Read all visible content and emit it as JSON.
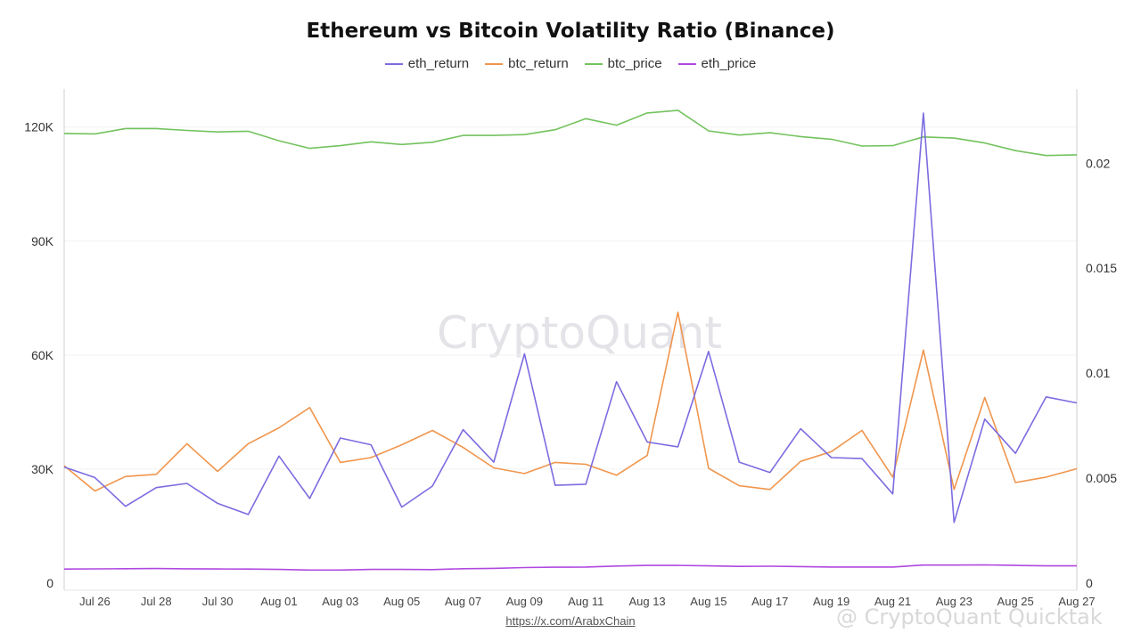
{
  "page": {
    "watermark_text": "CryptoQuant",
    "footer_link": "https://x.com/ArabxChain",
    "corner_mark": "@ CryptoQuant Quicktak"
  },
  "chart_data": {
    "type": "line",
    "title": "Ethereum vs Bitcoin Volatility Ratio (Binance)",
    "x": [
      "Jul 25",
      "Jul 26",
      "Jul 27",
      "Jul 28",
      "Jul 29",
      "Jul 30",
      "Jul 31",
      "Aug 01",
      "Aug 02",
      "Aug 03",
      "Aug 04",
      "Aug 05",
      "Aug 06",
      "Aug 07",
      "Aug 08",
      "Aug 09",
      "Aug 10",
      "Aug 11",
      "Aug 12",
      "Aug 13",
      "Aug 14",
      "Aug 15",
      "Aug 16",
      "Aug 17",
      "Aug 18",
      "Aug 19",
      "Aug 20",
      "Aug 21",
      "Aug 22",
      "Aug 23",
      "Aug 24",
      "Aug 25",
      "Aug 26",
      "Aug 27"
    ],
    "x_tick_labels": [
      "Jul 26",
      "Jul 28",
      "Jul 30",
      "Aug 01",
      "Aug 03",
      "Aug 05",
      "Aug 07",
      "Aug 09",
      "Aug 11",
      "Aug 13",
      "Aug 15",
      "Aug 17",
      "Aug 19",
      "Aug 21",
      "Aug 23",
      "Aug 25",
      "Aug 27"
    ],
    "y_left": {
      "ticks": [
        0,
        30000,
        60000,
        90000,
        120000
      ],
      "tick_labels": [
        "0",
        "30K",
        "60K",
        "90K",
        "120K"
      ],
      "range": [
        0,
        130000
      ]
    },
    "y_right": {
      "ticks": [
        0,
        0.005,
        0.01,
        0.015,
        0.02
      ],
      "tick_labels": [
        "0",
        "0.005",
        "0.01",
        "0.015",
        "0.02"
      ],
      "range": [
        0,
        0.02353
      ]
    },
    "grid": true,
    "legend_position": "top-center",
    "series": [
      {
        "name": "eth_return",
        "axis": "right",
        "color": "#7b6ce0",
        "values": [
          0.00553,
          0.00503,
          0.00366,
          0.00455,
          0.00475,
          0.0038,
          0.00327,
          0.00605,
          0.00403,
          0.00691,
          0.00659,
          0.00362,
          0.00462,
          0.00731,
          0.00576,
          0.01092,
          0.00466,
          0.00471,
          0.00959,
          0.00672,
          0.00649,
          0.01103,
          0.00576,
          0.00527,
          0.00735,
          0.00598,
          0.00593,
          0.00425,
          0.02238,
          0.00289,
          0.00781,
          0.00618,
          0.00887,
          0.00858
        ]
      },
      {
        "name": "btc_return",
        "axis": "right",
        "color": "#f0964e",
        "values": [
          0.00559,
          0.00439,
          0.00508,
          0.00518,
          0.00664,
          0.00532,
          0.00664,
          0.0074,
          0.00836,
          0.00575,
          0.00598,
          0.00659,
          0.00727,
          0.00646,
          0.00549,
          0.00522,
          0.00575,
          0.00566,
          0.00514,
          0.00608,
          0.0129,
          0.00547,
          0.00464,
          0.00446,
          0.0058,
          0.00626,
          0.00727,
          0.00505,
          0.0111,
          0.00446,
          0.00884,
          0.00479,
          0.00505,
          0.00545
        ]
      },
      {
        "name": "btc_price",
        "axis": "left",
        "color": "#73c25e",
        "values": [
          118300,
          118200,
          119600,
          119600,
          119100,
          118700,
          118900,
          116400,
          114400,
          115100,
          116100,
          115400,
          116000,
          117800,
          117800,
          118000,
          119300,
          122200,
          120500,
          123700,
          124400,
          119000,
          117900,
          118500,
          117500,
          116800,
          115000,
          115100,
          117400,
          117100,
          115800,
          113800,
          112500,
          112700
        ]
      },
      {
        "name": "eth_price",
        "axis": "left",
        "color": "#b048e0",
        "values": [
          3700,
          3750,
          3800,
          3850,
          3780,
          3720,
          3700,
          3600,
          3450,
          3450,
          3600,
          3600,
          3550,
          3800,
          3900,
          4100,
          4200,
          4250,
          4500,
          4650,
          4650,
          4550,
          4400,
          4450,
          4350,
          4250,
          4250,
          4250,
          4750,
          4750,
          4800,
          4650,
          4550,
          4550
        ]
      }
    ]
  }
}
